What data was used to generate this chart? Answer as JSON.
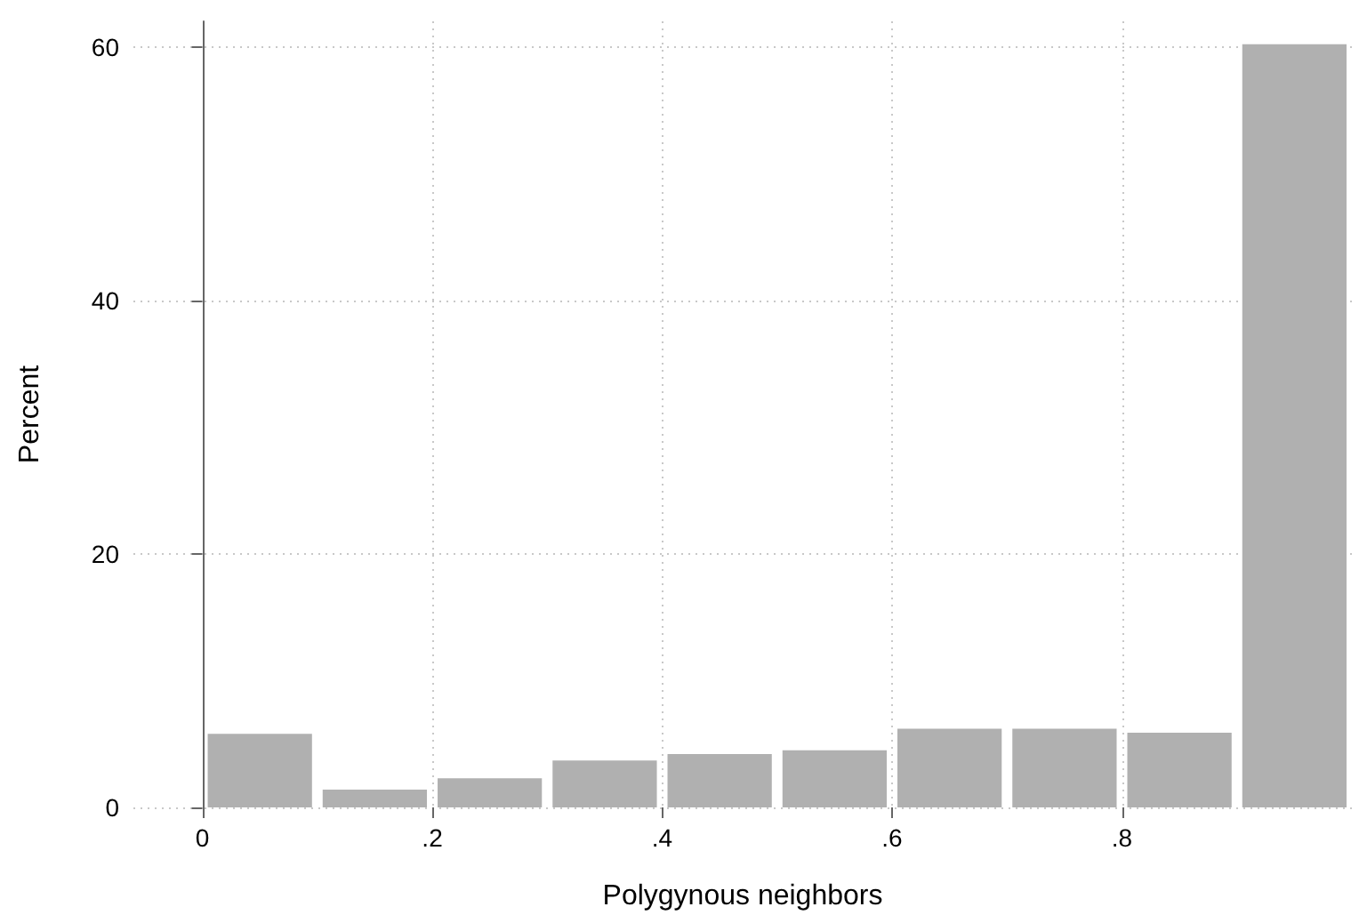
{
  "chart_data": {
    "type": "histogram",
    "xlabel": "Polygynous neighbors",
    "ylabel": "Percent",
    "bins": [
      0,
      0.1,
      0.2,
      0.3,
      0.4,
      0.5,
      0.6,
      0.7,
      0.8,
      0.9,
      1.0
    ],
    "values": [
      5.8,
      1.4,
      2.3,
      3.7,
      4.2,
      4.5,
      6.2,
      6.2,
      5.9,
      60.2
    ],
    "color": "#b0b0b0",
    "xlim": [
      -0.06,
      1.0
    ],
    "xticks": [
      0,
      {
        "value": 0.2,
        "label": ".2"
      },
      {
        "value": 0.4,
        "label": ".4"
      },
      {
        "value": 0.6,
        "label": ".6"
      },
      {
        "value": 0.8,
        "label": ".8"
      }
    ],
    "ylim": [
      0,
      62
    ],
    "yticks": [
      0,
      20,
      40,
      60
    ],
    "grid": true
  }
}
